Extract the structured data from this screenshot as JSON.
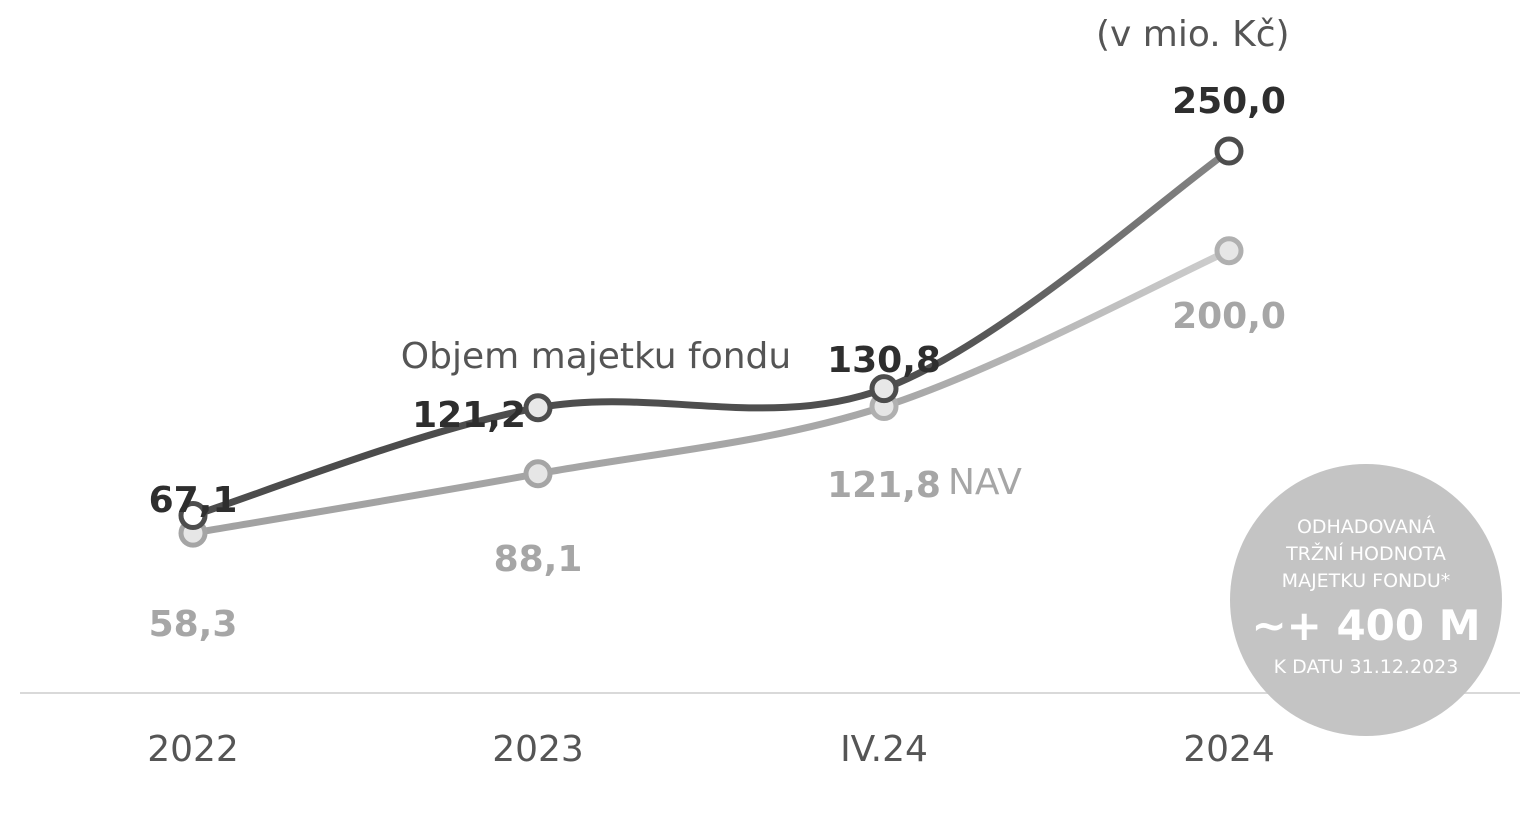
{
  "chart_data": {
    "type": "line",
    "categories": [
      "2022",
      "2023",
      "IV.24",
      "2024"
    ],
    "unit_label": "(v mio. Kč)",
    "series": [
      {
        "name": "Objem majetku fondu",
        "values": [
          67.1,
          121.2,
          130.8,
          250.0
        ],
        "labels": [
          "67,1",
          "121,2",
          "130,8",
          "250,0"
        ],
        "color": "#505050"
      },
      {
        "name": "NAV",
        "values": [
          58.3,
          88.1,
          121.8,
          200.0
        ],
        "labels": [
          "58,3",
          "88,1",
          "121,8",
          "200,0"
        ],
        "color": "#a6a6a6"
      }
    ],
    "grid": false,
    "axis_color": "#d9d9d9",
    "badge": {
      "line1": "ODHADOVANÁ",
      "line2": "TRŽNÍ HODNOTA",
      "line3": "MAJETKU FONDU*",
      "value": "~+ 400 M",
      "date": "K DATU 31.12.2023",
      "color": "#c4c4c4"
    }
  }
}
